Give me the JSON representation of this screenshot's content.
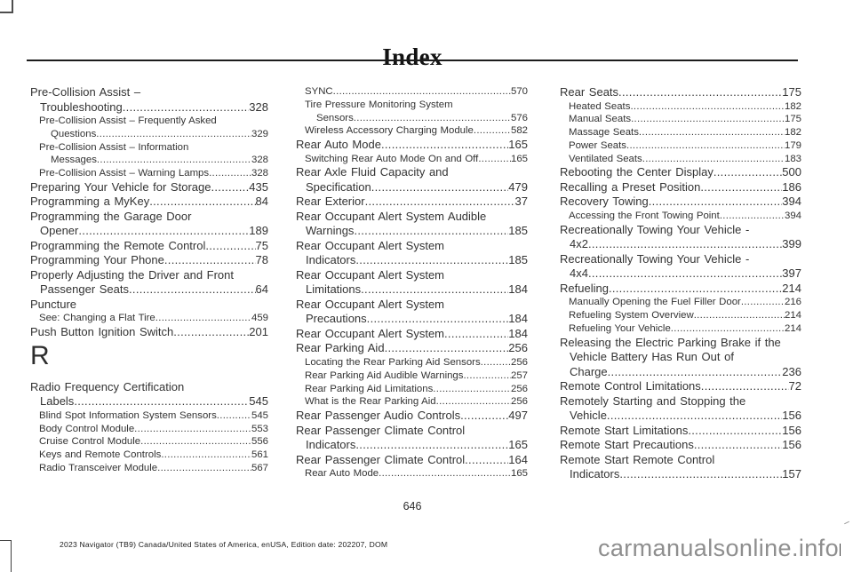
{
  "page": {
    "header_title": "Index",
    "page_number": "646",
    "footer_text": "2023 Navigator (TB9) Canada/United States of America, enUSA, Edition date: 202207, DOM",
    "watermark": "carmanualsonline.info"
  },
  "index_columns": [
    {
      "entries": [
        {
          "type": "main",
          "lines": [
            "Pre-Collision Assist –",
            "Troubleshooting"
          ],
          "page": "328"
        },
        {
          "type": "sub",
          "lines": [
            "Pre-Collision Assist – Frequently Asked",
            "Questions"
          ],
          "page": "329"
        },
        {
          "type": "sub",
          "lines": [
            "Pre-Collision Assist – Information",
            "Messages"
          ],
          "page": "328"
        },
        {
          "type": "sub",
          "lines": [
            "Pre-Collision Assist – Warning Lamps"
          ],
          "page": "328"
        },
        {
          "type": "main",
          "lines": [
            "Preparing Your Vehicle for Storage"
          ],
          "page": "435"
        },
        {
          "type": "main",
          "lines": [
            "Programming a MyKey"
          ],
          "page": "84"
        },
        {
          "type": "main",
          "lines": [
            "Programming the Garage Door",
            "Opener"
          ],
          "page": "189"
        },
        {
          "type": "main",
          "lines": [
            "Programming the Remote Control"
          ],
          "page": "75"
        },
        {
          "type": "main",
          "lines": [
            "Programming Your Phone"
          ],
          "page": "78"
        },
        {
          "type": "main",
          "lines": [
            "Properly Adjusting the Driver and Front",
            "Passenger  Seats"
          ],
          "page": "64"
        },
        {
          "type": "main",
          "lines": [
            "Puncture"
          ],
          "page": null
        },
        {
          "type": "sub",
          "lines": [
            "See: Changing a Flat Tire"
          ],
          "page": "459"
        },
        {
          "type": "main",
          "lines": [
            "Push Button Ignition Switch"
          ],
          "page": "201"
        },
        {
          "type": "letter",
          "lines": [
            "R"
          ],
          "page": null
        },
        {
          "type": "main",
          "lines": [
            "Radio Frequency Certification",
            "Labels"
          ],
          "page": "545"
        },
        {
          "type": "sub",
          "lines": [
            "Blind Spot Information System Sensors"
          ],
          "page": "545"
        },
        {
          "type": "sub",
          "lines": [
            "Body Control Module"
          ],
          "page": "553"
        },
        {
          "type": "sub",
          "lines": [
            "Cruise Control Module"
          ],
          "page": "556"
        },
        {
          "type": "sub",
          "lines": [
            "Keys and Remote Controls"
          ],
          "page": "561"
        },
        {
          "type": "sub",
          "lines": [
            "Radio Transceiver Module"
          ],
          "page": "567"
        }
      ]
    },
    {
      "entries": [
        {
          "type": "sub",
          "lines": [
            "SYNC"
          ],
          "page": "570"
        },
        {
          "type": "sub",
          "lines": [
            "Tire Pressure Monitoring System",
            "Sensors"
          ],
          "page": "576"
        },
        {
          "type": "sub",
          "lines": [
            "Wireless Accessory Charging Module"
          ],
          "page": "582"
        },
        {
          "type": "main",
          "lines": [
            "Rear Auto Mode"
          ],
          "page": "165"
        },
        {
          "type": "sub",
          "lines": [
            "Switching Rear Auto Mode On and Off"
          ],
          "page": "165"
        },
        {
          "type": "main",
          "lines": [
            "Rear Axle Fluid Capacity and",
            "Specification"
          ],
          "page": "479"
        },
        {
          "type": "main",
          "lines": [
            "Rear Exterior"
          ],
          "page": "37"
        },
        {
          "type": "main",
          "lines": [
            "Rear Occupant Alert System Audible",
            "Warnings"
          ],
          "page": "185"
        },
        {
          "type": "main",
          "lines": [
            "Rear Occupant Alert System",
            "Indicators"
          ],
          "page": "185"
        },
        {
          "type": "main",
          "lines": [
            "Rear Occupant Alert System",
            "Limitations"
          ],
          "page": "184"
        },
        {
          "type": "main",
          "lines": [
            "Rear Occupant Alert System",
            "Precautions"
          ],
          "page": "184"
        },
        {
          "type": "main",
          "lines": [
            "Rear Occupant Alert System"
          ],
          "page": "184"
        },
        {
          "type": "main",
          "lines": [
            "Rear Parking Aid"
          ],
          "page": "256"
        },
        {
          "type": "sub",
          "lines": [
            "Locating the Rear Parking Aid Sensors"
          ],
          "page": "256"
        },
        {
          "type": "sub",
          "lines": [
            "Rear Parking Aid Audible Warnings"
          ],
          "page": "257"
        },
        {
          "type": "sub",
          "lines": [
            "Rear Parking Aid Limitations"
          ],
          "page": "256"
        },
        {
          "type": "sub",
          "lines": [
            "What is the Rear Parking Aid"
          ],
          "page": "256"
        },
        {
          "type": "main",
          "lines": [
            "Rear Passenger Audio Controls"
          ],
          "page": "497"
        },
        {
          "type": "main",
          "lines": [
            "Rear Passenger Climate Control",
            "Indicators"
          ],
          "page": "165"
        },
        {
          "type": "main",
          "lines": [
            "Rear Passenger Climate Control"
          ],
          "page": "164"
        },
        {
          "type": "sub",
          "lines": [
            "Rear Auto Mode"
          ],
          "page": "165"
        }
      ]
    },
    {
      "entries": [
        {
          "type": "main",
          "lines": [
            "Rear  Seats"
          ],
          "page": "175"
        },
        {
          "type": "sub",
          "lines": [
            "Heated Seats"
          ],
          "page": "182"
        },
        {
          "type": "sub",
          "lines": [
            "Manual  Seats"
          ],
          "page": "175"
        },
        {
          "type": "sub",
          "lines": [
            "Massage Seats"
          ],
          "page": "182"
        },
        {
          "type": "sub",
          "lines": [
            "Power  Seats"
          ],
          "page": "179"
        },
        {
          "type": "sub",
          "lines": [
            "Ventilated Seats"
          ],
          "page": "183"
        },
        {
          "type": "main",
          "lines": [
            "Rebooting the Center Display"
          ],
          "page": "500"
        },
        {
          "type": "main",
          "lines": [
            "Recalling a Preset Position"
          ],
          "page": "186"
        },
        {
          "type": "main",
          "lines": [
            "Recovery  Towing"
          ],
          "page": "394"
        },
        {
          "type": "sub",
          "lines": [
            "Accessing the Front Towing Point"
          ],
          "page": "394"
        },
        {
          "type": "main",
          "lines": [
            "Recreationally Towing Your Vehicle -",
            "4x2"
          ],
          "page": "399"
        },
        {
          "type": "main",
          "lines": [
            "Recreationally Towing Your Vehicle -",
            "4x4"
          ],
          "page": "397"
        },
        {
          "type": "main",
          "lines": [
            "Refueling"
          ],
          "page": "214"
        },
        {
          "type": "sub",
          "lines": [
            "Manually Opening the Fuel Filler Door"
          ],
          "page": "216"
        },
        {
          "type": "sub",
          "lines": [
            "Refueling  System  Overview"
          ],
          "page": "214"
        },
        {
          "type": "sub",
          "lines": [
            "Refueling Your Vehicle"
          ],
          "page": "214"
        },
        {
          "type": "main",
          "lines": [
            "Releasing the Electric Parking Brake if the",
            "Vehicle Battery Has Run Out of",
            "Charge"
          ],
          "page": "236"
        },
        {
          "type": "main",
          "lines": [
            "Remote Control Limitations"
          ],
          "page": "72"
        },
        {
          "type": "main",
          "lines": [
            "Remotely Starting and Stopping the",
            "Vehicle"
          ],
          "page": "156"
        },
        {
          "type": "main",
          "lines": [
            "Remote  Start  Limitations"
          ],
          "page": "156"
        },
        {
          "type": "main",
          "lines": [
            "Remote  Start  Precautions"
          ],
          "page": "156"
        },
        {
          "type": "main",
          "lines": [
            "Remote Start Remote Control",
            "Indicators"
          ],
          "page": "157"
        }
      ]
    }
  ]
}
